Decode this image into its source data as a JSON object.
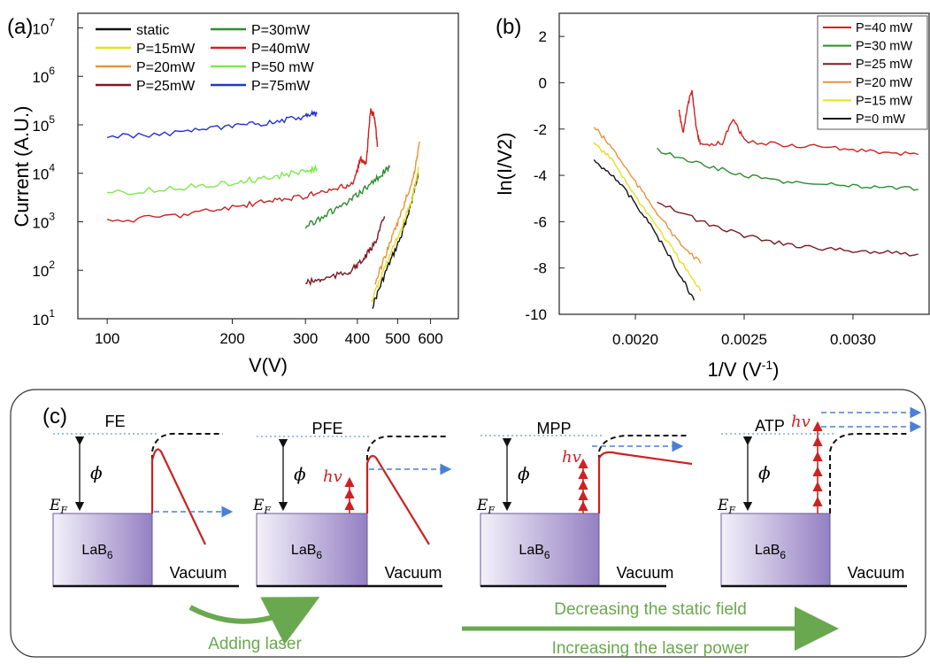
{
  "chart_data": [
    {
      "panel_label": "(a)",
      "type": "line",
      "xlabel": "V(V)",
      "ylabel": "Current (A.U.)",
      "x_scale": "log",
      "y_scale": "log",
      "xlim": [
        85,
        700
      ],
      "ylim": [
        10,
        20000000
      ],
      "x_ticks": [
        {
          "value": 100,
          "label": "100"
        },
        {
          "value": 200,
          "label": "200"
        },
        {
          "value": 300,
          "label": "300"
        },
        {
          "value": 400,
          "label": "400"
        },
        {
          "value": 500,
          "label": "500"
        },
        {
          "value": 600,
          "label": "600"
        }
      ],
      "y_ticks": [
        {
          "value": 10,
          "label": "10",
          "exp": "1"
        },
        {
          "value": 100,
          "label": "10",
          "exp": "2"
        },
        {
          "value": 1000,
          "label": "10",
          "exp": "3"
        },
        {
          "value": 10000,
          "label": "10",
          "exp": "4"
        },
        {
          "value": 100000,
          "label": "10",
          "exp": "5"
        },
        {
          "value": 1000000,
          "label": "10",
          "exp": "6"
        },
        {
          "value": 10000000,
          "label": "10",
          "exp": "7"
        }
      ],
      "legend_position": "top, two columns",
      "series": [
        {
          "name": "static",
          "color": "#111111",
          "points": [
            [
              435,
              18
            ],
            [
              470,
              100
            ],
            [
              510,
              500
            ],
            [
              540,
              2500
            ],
            [
              560,
              10000
            ]
          ]
        },
        {
          "name": "P=15mW",
          "color": "#e6e020",
          "points": [
            [
              432,
              22
            ],
            [
              470,
              140
            ],
            [
              510,
              700
            ],
            [
              545,
              3500
            ],
            [
              562,
              13000
            ]
          ]
        },
        {
          "name": "P=20mW",
          "color": "#e8943a",
          "points": [
            [
              440,
              50
            ],
            [
              475,
              300
            ],
            [
              510,
              1500
            ],
            [
              545,
              8000
            ],
            [
              565,
              45000
            ]
          ]
        },
        {
          "name": "P=25mW",
          "color": "#7a1a22",
          "points": [
            [
              300,
              55
            ],
            [
              330,
              65
            ],
            [
              380,
              90
            ],
            [
              410,
              150
            ],
            [
              440,
              350
            ],
            [
              465,
              1300
            ]
          ]
        },
        {
          "name": "P=30mW",
          "color": "#2e8b2e",
          "points": [
            [
              300,
              800
            ],
            [
              340,
              1500
            ],
            [
              380,
              2500
            ],
            [
              420,
              5000
            ],
            [
              460,
              10000
            ],
            [
              478,
              13000
            ]
          ]
        },
        {
          "name": "P=40mW",
          "color": "#cc2222",
          "points": [
            [
              100,
              1000
            ],
            [
              150,
              1400
            ],
            [
              200,
              2000
            ],
            [
              250,
              2700
            ],
            [
              300,
              3400
            ],
            [
              350,
              4500
            ],
            [
              390,
              6000
            ],
            [
              408,
              20000
            ],
            [
              420,
              15000
            ],
            [
              430,
              200000
            ],
            [
              440,
              150000
            ],
            [
              447,
              35000
            ]
          ]
        },
        {
          "name": "P=50 mW",
          "color": "#7cea4a",
          "points": [
            [
              100,
              3800
            ],
            [
              150,
              5000
            ],
            [
              200,
              6500
            ],
            [
              250,
              8500
            ],
            [
              300,
              11000
            ],
            [
              320,
              12500
            ]
          ]
        },
        {
          "name": "P=75mW",
          "color": "#2233cc",
          "points": [
            [
              100,
              55000
            ],
            [
              150,
              70000
            ],
            [
              200,
              90000
            ],
            [
              250,
              115000
            ],
            [
              300,
              150000
            ],
            [
              320,
              170000
            ]
          ]
        }
      ]
    },
    {
      "panel_label": "(b)",
      "type": "line",
      "xlabel": "1/V (V",
      "xlabel_sup": "-1",
      "xlabel_end": ")",
      "ylabel": "ln(I/V2)",
      "xlim": [
        0.00165,
        0.00335
      ],
      "ylim": [
        -10,
        3
      ],
      "x_ticks": [
        {
          "value": 0.002,
          "label": "0.0020"
        },
        {
          "value": 0.0025,
          "label": "0.0025"
        },
        {
          "value": 0.003,
          "label": "0.0030"
        }
      ],
      "y_ticks": [
        {
          "value": 2,
          "label": "2"
        },
        {
          "value": 0,
          "label": "0"
        },
        {
          "value": -2,
          "label": "-2"
        },
        {
          "value": -4,
          "label": "-4"
        },
        {
          "value": -6,
          "label": "-6"
        },
        {
          "value": -8,
          "label": "-8"
        },
        {
          "value": -10,
          "label": "-10"
        }
      ],
      "legend_position": "top-right",
      "series": [
        {
          "name": "P=40 mW",
          "color": "#cc2222",
          "points": [
            [
              0.0022,
              -1.2
            ],
            [
              0.00222,
              -2.2
            ],
            [
              0.00224,
              -1.0
            ],
            [
              0.00226,
              -0.3
            ],
            [
              0.00228,
              -2.0
            ],
            [
              0.0023,
              -2.7
            ],
            [
              0.0024,
              -2.6
            ],
            [
              0.00245,
              -1.5
            ],
            [
              0.0025,
              -2.5
            ],
            [
              0.0027,
              -2.7
            ],
            [
              0.0029,
              -2.8
            ],
            [
              0.0031,
              -3.0
            ],
            [
              0.0033,
              -3.1
            ]
          ]
        },
        {
          "name": "P=30 mW",
          "color": "#2e8b2e",
          "points": [
            [
              0.0021,
              -2.9
            ],
            [
              0.0023,
              -3.5
            ],
            [
              0.0025,
              -4.0
            ],
            [
              0.0027,
              -4.3
            ],
            [
              0.0029,
              -4.4
            ],
            [
              0.0031,
              -4.5
            ],
            [
              0.0033,
              -4.6
            ]
          ]
        },
        {
          "name": "P=25 mW",
          "color": "#7a1a22",
          "points": [
            [
              0.0021,
              -5.1
            ],
            [
              0.0023,
              -6.0
            ],
            [
              0.0025,
              -6.6
            ],
            [
              0.0027,
              -7.0
            ],
            [
              0.0029,
              -7.2
            ],
            [
              0.0031,
              -7.3
            ],
            [
              0.0033,
              -7.4
            ]
          ]
        },
        {
          "name": "P=20 mW",
          "color": "#e8943a",
          "points": [
            [
              0.00181,
              -1.9
            ],
            [
              0.0019,
              -2.9
            ],
            [
              0.002,
              -4.3
            ],
            [
              0.0021,
              -5.6
            ],
            [
              0.0022,
              -6.9
            ],
            [
              0.0023,
              -7.8
            ]
          ]
        },
        {
          "name": "P=15 mW",
          "color": "#e6e020",
          "points": [
            [
              0.00181,
              -2.6
            ],
            [
              0.0019,
              -3.4
            ],
            [
              0.002,
              -4.9
            ],
            [
              0.0021,
              -6.2
            ],
            [
              0.0022,
              -7.6
            ],
            [
              0.0023,
              -9.0
            ]
          ]
        },
        {
          "name": "P=0 mW",
          "color": "#111111",
          "points": [
            [
              0.00181,
              -3.4
            ],
            [
              0.0019,
              -4.0
            ],
            [
              0.002,
              -5.2
            ],
            [
              0.0021,
              -6.6
            ],
            [
              0.0022,
              -8.2
            ],
            [
              0.00227,
              -9.4
            ]
          ]
        }
      ]
    }
  ],
  "diagram": {
    "panel_label": "(c)",
    "panels": [
      {
        "title": "FE",
        "material": "LaB",
        "sub": "6",
        "region": "Vacuum",
        "phi": "ϕ",
        "ef": "E",
        "ef_sub": "F"
      },
      {
        "title": "PFE",
        "material": "LaB",
        "sub": "6",
        "region": "Vacuum",
        "phi": "ϕ",
        "ef": "E",
        "ef_sub": "F",
        "hv": "hv"
      },
      {
        "title": "MPP",
        "material": "LaB",
        "sub": "6",
        "region": "Vacuum",
        "phi": "ϕ",
        "ef": "E",
        "ef_sub": "F",
        "hv": "hv"
      },
      {
        "title": "ATP",
        "material": "LaB",
        "sub": "6",
        "region": "Vacuum",
        "phi": "ϕ",
        "ef": "E",
        "ef_sub": "F",
        "hv": "hv"
      }
    ],
    "adding_laser": "Adding laser",
    "decreasing_field": "Decreasing the static field",
    "increasing_power": "Increasing the laser power",
    "colors": {
      "arrow_green": "#6aa84f",
      "laser_red": "#cc2222",
      "electron_blue": "#4a7fd6",
      "block_purple": "#9b87c4"
    }
  }
}
